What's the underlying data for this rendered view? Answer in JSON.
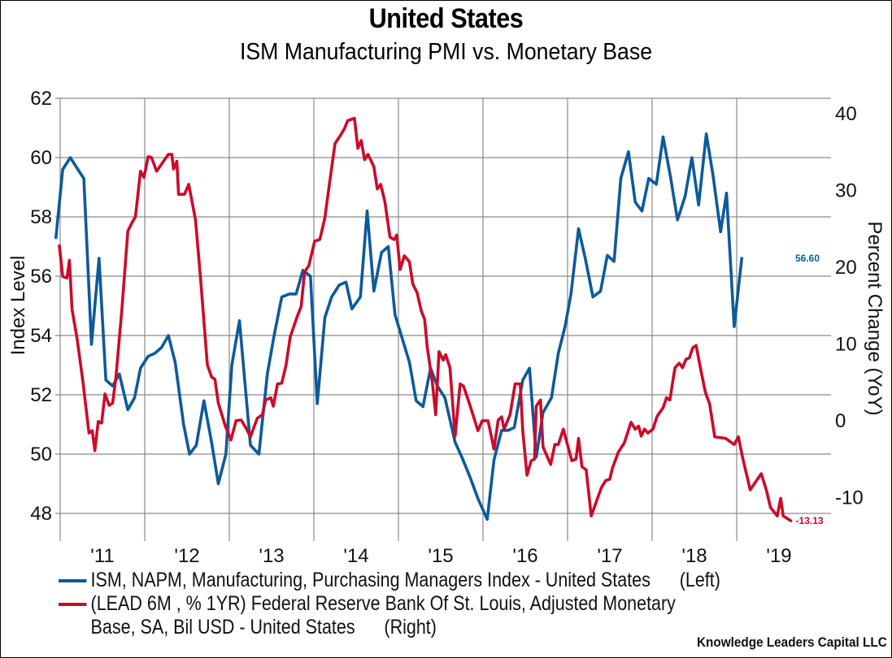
{
  "header": {
    "title": "United States",
    "subtitle": "ISM Manufacturing PMI vs. Monetary Base"
  },
  "legend": {
    "items": [
      {
        "name": "ISM",
        "color": "#0d5a9a",
        "line1": "ISM, NAPM, Manufacturing, Purchasing Managers Index - United States      (Left)",
        "line2": ""
      },
      {
        "name": "Monetary Base",
        "color": "#cc0a2a",
        "line1": "(LEAD 6M , % 1YR) Federal Reserve Bank Of St. Louis, Adjusted Monetary",
        "line2": "Base, SA, Bil USD - United States      (Right)"
      }
    ]
  },
  "credit": "Knowledge Leaders Capital LLC",
  "chart_data": {
    "type": "line",
    "title": "United States",
    "subtitle": "ISM Manufacturing PMI vs. Monetary Base",
    "xlabel": "",
    "ylabel": "Index Level",
    "y2label": "Percent Change (YoY)",
    "x_ticks": [
      "'11",
      "'12",
      "'13",
      "'14",
      "'15",
      "'16",
      "'17",
      "'18",
      "'19"
    ],
    "x_range": [
      2011,
      2020.1
    ],
    "ylim": [
      47,
      62
    ],
    "y_ticks": [
      48,
      50,
      52,
      54,
      56,
      58,
      60,
      62
    ],
    "y2lim": [
      -15.4,
      40
    ],
    "y2_ticks": [
      -10,
      0,
      10,
      20,
      30,
      40
    ],
    "grid": true,
    "legend_position": "bottom",
    "series": [
      {
        "name": "ISM, NAPM, Manufacturing, Purchasing Managers Index - United States",
        "axis": "left",
        "color": "#0d5a9a",
        "end_label": "56.60",
        "points": [
          [
            2010.95,
            57.3
          ],
          [
            2011.03,
            59.6
          ],
          [
            2011.12,
            60.0
          ],
          [
            2011.21,
            59.6
          ],
          [
            2011.28,
            59.3
          ],
          [
            2011.37,
            53.7
          ],
          [
            2011.46,
            56.6
          ],
          [
            2011.54,
            52.5
          ],
          [
            2011.62,
            52.3
          ],
          [
            2011.7,
            52.7
          ],
          [
            2011.8,
            51.5
          ],
          [
            2011.88,
            51.9
          ],
          [
            2011.95,
            52.9
          ],
          [
            2012.04,
            53.3
          ],
          [
            2012.12,
            53.4
          ],
          [
            2012.2,
            53.6
          ],
          [
            2012.28,
            54.0
          ],
          [
            2012.36,
            53.1
          ],
          [
            2012.46,
            51.0
          ],
          [
            2012.53,
            50.0
          ],
          [
            2012.61,
            50.3
          ],
          [
            2012.7,
            51.8
          ],
          [
            2012.79,
            50.4
          ],
          [
            2012.87,
            49.0
          ],
          [
            2012.96,
            50.0
          ],
          [
            2013.03,
            53.0
          ],
          [
            2013.12,
            54.5
          ],
          [
            2013.25,
            50.3
          ],
          [
            2013.35,
            50.0
          ],
          [
            2013.45,
            52.7
          ],
          [
            2013.53,
            54.0
          ],
          [
            2013.62,
            55.3
          ],
          [
            2013.71,
            55.4
          ],
          [
            2013.79,
            55.4
          ],
          [
            2013.87,
            56.2
          ],
          [
            2013.96,
            56.0
          ],
          [
            2014.04,
            51.7
          ],
          [
            2014.13,
            54.6
          ],
          [
            2014.21,
            55.3
          ],
          [
            2014.3,
            55.7
          ],
          [
            2014.38,
            55.8
          ],
          [
            2014.45,
            54.9
          ],
          [
            2014.55,
            55.3
          ],
          [
            2014.63,
            58.2
          ],
          [
            2014.71,
            55.5
          ],
          [
            2014.8,
            56.8
          ],
          [
            2014.88,
            57.0
          ],
          [
            2014.96,
            54.7
          ],
          [
            2015.13,
            53.1
          ],
          [
            2015.21,
            51.8
          ],
          [
            2015.29,
            51.6
          ],
          [
            2015.38,
            52.9
          ],
          [
            2015.46,
            52.3
          ],
          [
            2015.55,
            51.9
          ],
          [
            2015.67,
            50.4
          ],
          [
            2015.75,
            49.9
          ],
          [
            2015.85,
            49.2
          ],
          [
            2015.94,
            48.5
          ],
          [
            2016.05,
            47.8
          ],
          [
            2016.13,
            49.8
          ],
          [
            2016.22,
            50.8
          ],
          [
            2016.3,
            50.8
          ],
          [
            2016.37,
            50.9
          ],
          [
            2016.47,
            52.5
          ],
          [
            2016.55,
            52.9
          ],
          [
            2016.63,
            49.9
          ],
          [
            2016.71,
            51.4
          ],
          [
            2016.81,
            51.9
          ],
          [
            2016.89,
            53.4
          ],
          [
            2016.97,
            54.3
          ],
          [
            2017.04,
            55.4
          ],
          [
            2017.13,
            57.6
          ],
          [
            2017.21,
            56.6
          ],
          [
            2017.3,
            55.3
          ],
          [
            2017.39,
            55.5
          ],
          [
            2017.47,
            56.7
          ],
          [
            2017.55,
            56.5
          ],
          [
            2017.63,
            59.3
          ],
          [
            2017.72,
            60.2
          ],
          [
            2017.8,
            58.5
          ],
          [
            2017.88,
            58.2
          ],
          [
            2017.96,
            59.3
          ],
          [
            2018.05,
            59.1
          ],
          [
            2018.13,
            60.7
          ],
          [
            2018.22,
            59.3
          ],
          [
            2018.3,
            57.9
          ],
          [
            2018.39,
            58.7
          ],
          [
            2018.47,
            60.0
          ],
          [
            2018.55,
            58.4
          ],
          [
            2018.64,
            60.8
          ],
          [
            2018.72,
            59.4
          ],
          [
            2018.81,
            57.5
          ],
          [
            2018.88,
            58.8
          ],
          [
            2018.97,
            54.3
          ],
          [
            2019.06,
            56.6
          ]
        ]
      },
      {
        "name": "(LEAD 6M , % 1YR) Federal Reserve Bank Of St. Louis, Adjusted Monetary Base, SA, Bil USD - United States",
        "axis": "right",
        "color": "#cc0a2a",
        "end_label": "-13.13",
        "points": [
          [
            2010.99,
            22.7
          ],
          [
            2011.03,
            18.7
          ],
          [
            2011.08,
            18.5
          ],
          [
            2011.11,
            20.8
          ],
          [
            2011.14,
            14.4
          ],
          [
            2011.2,
            10.6
          ],
          [
            2011.27,
            4.9
          ],
          [
            2011.34,
            -1.7
          ],
          [
            2011.38,
            -1.4
          ],
          [
            2011.41,
            -4.0
          ],
          [
            2011.45,
            -0.2
          ],
          [
            2011.49,
            -0.4
          ],
          [
            2011.53,
            3.4
          ],
          [
            2011.58,
            1.9
          ],
          [
            2011.62,
            2.2
          ],
          [
            2011.66,
            5.6
          ],
          [
            2011.73,
            14.4
          ],
          [
            2011.8,
            24.6
          ],
          [
            2011.86,
            25.9
          ],
          [
            2011.89,
            26.5
          ],
          [
            2011.95,
            32.4
          ],
          [
            2011.99,
            31.6
          ],
          [
            2012.04,
            34.3
          ],
          [
            2012.08,
            34.2
          ],
          [
            2012.14,
            32.4
          ],
          [
            2012.21,
            33.5
          ],
          [
            2012.28,
            34.6
          ],
          [
            2012.32,
            34.6
          ],
          [
            2012.34,
            32.7
          ],
          [
            2012.38,
            33.7
          ],
          [
            2012.4,
            29.4
          ],
          [
            2012.47,
            29.4
          ],
          [
            2012.52,
            30.7
          ],
          [
            2012.6,
            26.1
          ],
          [
            2012.66,
            18.5
          ],
          [
            2012.74,
            7.2
          ],
          [
            2012.79,
            5.6
          ],
          [
            2012.83,
            5.3
          ],
          [
            2012.87,
            2.2
          ],
          [
            2012.95,
            -0.7
          ],
          [
            2013.02,
            -2.6
          ],
          [
            2013.08,
            -0.1
          ],
          [
            2013.14,
            0.0
          ],
          [
            2013.2,
            -1.1
          ],
          [
            2013.25,
            -2.2
          ],
          [
            2013.33,
            0.2
          ],
          [
            2013.39,
            0.7
          ],
          [
            2013.43,
            2.6
          ],
          [
            2013.49,
            2.9
          ],
          [
            2013.52,
            1.8
          ],
          [
            2013.57,
            4.7
          ],
          [
            2013.62,
            4.8
          ],
          [
            2013.67,
            7.1
          ],
          [
            2013.72,
            10.8
          ],
          [
            2013.8,
            13.4
          ],
          [
            2013.85,
            14.8
          ],
          [
            2013.89,
            19.3
          ],
          [
            2013.94,
            20.1
          ],
          [
            2014.01,
            23.3
          ],
          [
            2014.07,
            23.5
          ],
          [
            2014.13,
            26.3
          ],
          [
            2014.18,
            30.4
          ],
          [
            2014.25,
            36.0
          ],
          [
            2014.31,
            37.0
          ],
          [
            2014.36,
            37.9
          ],
          [
            2014.4,
            39.0
          ],
          [
            2014.48,
            39.3
          ],
          [
            2014.52,
            35.4
          ],
          [
            2014.56,
            36.4
          ],
          [
            2014.6,
            33.9
          ],
          [
            2014.64,
            34.6
          ],
          [
            2014.71,
            33.0
          ],
          [
            2014.75,
            30.1
          ],
          [
            2014.79,
            30.7
          ],
          [
            2014.84,
            28.4
          ],
          [
            2014.9,
            23.8
          ],
          [
            2014.95,
            23.5
          ],
          [
            2014.98,
            24.1
          ],
          [
            2015.02,
            19.6
          ],
          [
            2015.07,
            21.4
          ],
          [
            2015.13,
            20.6
          ],
          [
            2015.17,
            17.7
          ],
          [
            2015.22,
            16.6
          ],
          [
            2015.27,
            14.2
          ],
          [
            2015.31,
            13.1
          ],
          [
            2015.34,
            9.5
          ],
          [
            2015.4,
            5.0
          ],
          [
            2015.44,
            0.7
          ],
          [
            2015.48,
            8.9
          ],
          [
            2015.53,
            7.8
          ],
          [
            2015.56,
            8.5
          ],
          [
            2015.61,
            6.8
          ],
          [
            2015.67,
            -2.1
          ],
          [
            2015.73,
            4.7
          ],
          [
            2015.77,
            4.4
          ],
          [
            2015.84,
            2.1
          ],
          [
            2015.94,
            -1.4
          ],
          [
            2015.99,
            -0.1
          ],
          [
            2016.06,
            -0.1
          ],
          [
            2016.13,
            -3.8
          ],
          [
            2016.18,
            0.0
          ],
          [
            2016.22,
            0.4
          ],
          [
            2016.25,
            -1.2
          ],
          [
            2016.32,
            0.7
          ],
          [
            2016.38,
            4.7
          ],
          [
            2016.44,
            4.7
          ],
          [
            2016.47,
            -1.4
          ],
          [
            2016.52,
            -7.2
          ],
          [
            2016.57,
            -5.3
          ],
          [
            2016.61,
            -5.1
          ],
          [
            2016.63,
            1.8
          ],
          [
            2016.68,
            2.6
          ],
          [
            2016.71,
            -3.5
          ],
          [
            2016.8,
            -5.8
          ],
          [
            2016.85,
            -3.2
          ],
          [
            2016.89,
            -3.2
          ],
          [
            2016.95,
            -1.2
          ],
          [
            2017.05,
            -5.3
          ],
          [
            2017.1,
            -5.1
          ],
          [
            2017.13,
            -2.4
          ],
          [
            2017.17,
            -6.1
          ],
          [
            2017.22,
            -6.5
          ],
          [
            2017.28,
            -12.5
          ],
          [
            2017.4,
            -8.8
          ],
          [
            2017.45,
            -7.9
          ],
          [
            2017.5,
            -7.7
          ],
          [
            2017.53,
            -6.3
          ],
          [
            2017.6,
            -4.2
          ],
          [
            2017.67,
            -3.0
          ],
          [
            2017.75,
            -0.3
          ],
          [
            2017.8,
            -1.2
          ],
          [
            2017.84,
            -0.8
          ],
          [
            2017.87,
            -2.1
          ],
          [
            2017.91,
            -1.2
          ],
          [
            2017.95,
            -1.7
          ],
          [
            2018.01,
            -1.2
          ],
          [
            2018.06,
            0.5
          ],
          [
            2018.13,
            1.6
          ],
          [
            2018.17,
            2.9
          ],
          [
            2018.21,
            2.6
          ],
          [
            2018.27,
            6.8
          ],
          [
            2018.32,
            7.4
          ],
          [
            2018.36,
            6.8
          ],
          [
            2018.4,
            7.9
          ],
          [
            2018.44,
            8.1
          ],
          [
            2018.48,
            9.4
          ],
          [
            2018.52,
            9.7
          ],
          [
            2018.58,
            6.3
          ],
          [
            2018.63,
            3.6
          ],
          [
            2018.68,
            2.1
          ],
          [
            2018.74,
            -2.2
          ],
          [
            2018.87,
            -2.4
          ],
          [
            2018.92,
            -2.8
          ],
          [
            2018.97,
            -3.2
          ],
          [
            2019.02,
            -2.2
          ],
          [
            2019.07,
            -4.9
          ],
          [
            2019.16,
            -9.1
          ],
          [
            2019.21,
            -8.3
          ],
          [
            2019.29,
            -7.0
          ],
          [
            2019.35,
            -9.1
          ],
          [
            2019.4,
            -11.4
          ],
          [
            2019.48,
            -12.5
          ],
          [
            2019.52,
            -10.2
          ],
          [
            2019.55,
            -12.5
          ],
          [
            2019.64,
            -13.13
          ]
        ]
      }
    ]
  }
}
